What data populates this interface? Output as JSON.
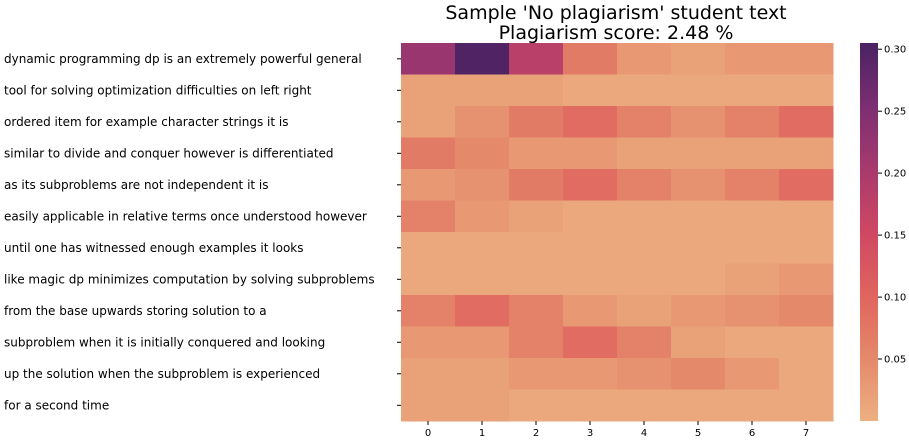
{
  "chart_data": {
    "type": "heatmap",
    "title": "Sample 'No plagiarism' student text",
    "subtitle": "Plagiarism score: 2.48 %",
    "row_labels": [
      "dynamic programming dp is an extremely powerful general",
      "tool for solving optimization difficulties on left right",
      "ordered item for example character strings it is",
      "similar to divide and conquer however is differentiated",
      "as its subproblems are not independent it is",
      "easily applicable in relative terms once understood however",
      "until one has witnessed enough examples it looks",
      "like magic dp minimizes computation by solving subproblems",
      "from the base upwards storing solution to a",
      "subproblem when it is initially conquered and looking",
      "up the solution when the subproblem is experienced",
      "for a second time"
    ],
    "column_labels": [
      "0",
      "1",
      "2",
      "3",
      "4",
      "5",
      "6",
      "7"
    ],
    "values": [
      [
        0.22,
        0.3,
        0.18,
        0.07,
        0.03,
        0.02,
        0.03,
        0.03
      ],
      [
        0.02,
        0.02,
        0.02,
        0.01,
        0.01,
        0.01,
        0.01,
        0.01
      ],
      [
        0.02,
        0.04,
        0.07,
        0.09,
        0.06,
        0.04,
        0.06,
        0.09
      ],
      [
        0.07,
        0.05,
        0.03,
        0.03,
        0.02,
        0.02,
        0.02,
        0.02
      ],
      [
        0.03,
        0.04,
        0.07,
        0.09,
        0.06,
        0.04,
        0.06,
        0.09
      ],
      [
        0.06,
        0.03,
        0.02,
        0.01,
        0.01,
        0.01,
        0.01,
        0.01
      ],
      [
        0.01,
        0.01,
        0.01,
        0.01,
        0.01,
        0.01,
        0.01,
        0.01
      ],
      [
        0.01,
        0.01,
        0.01,
        0.01,
        0.01,
        0.01,
        0.02,
        0.03
      ],
      [
        0.06,
        0.09,
        0.06,
        0.03,
        0.02,
        0.03,
        0.04,
        0.05
      ],
      [
        0.03,
        0.03,
        0.06,
        0.09,
        0.06,
        0.02,
        0.01,
        0.01
      ],
      [
        0.02,
        0.02,
        0.03,
        0.03,
        0.04,
        0.05,
        0.03,
        0.01
      ],
      [
        0.02,
        0.02,
        0.01,
        0.01,
        0.01,
        0.01,
        0.01,
        0.01
      ]
    ],
    "colorbar": {
      "min": 0.0,
      "max": 0.305,
      "ticks": [
        0.05,
        0.1,
        0.15,
        0.2,
        0.25,
        0.3
      ],
      "tick_labels": [
        "0.05",
        "0.10",
        "0.15",
        "0.20",
        "0.25",
        "0.30"
      ],
      "colormap": "flare",
      "stops": [
        "#edb081",
        "#e4896a",
        "#e0645e",
        "#ce4763",
        "#a73a6d",
        "#7b2e73",
        "#4a2262"
      ]
    }
  }
}
